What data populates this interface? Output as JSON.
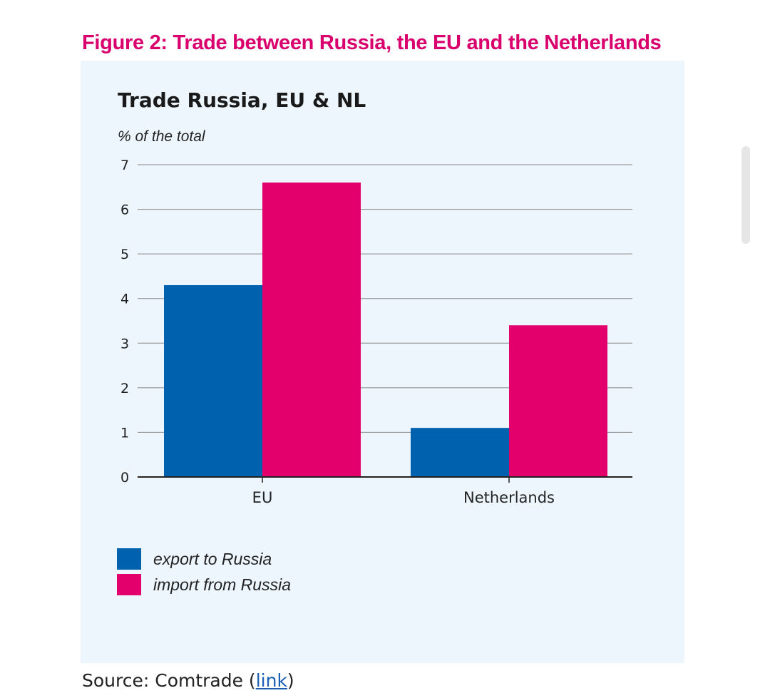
{
  "figure_title": "Figure 2: Trade between Russia, the EU and the Netherlands",
  "source": {
    "prefix": "Source: Comtrade (",
    "link": "link",
    "suffix": ")"
  },
  "chart_data": {
    "type": "bar",
    "title": "Trade Russia, EU & NL",
    "ylabel": "% of the total",
    "xlabel": "",
    "ylim": [
      0,
      7
    ],
    "yticks": [
      0,
      1,
      2,
      3,
      4,
      5,
      6,
      7
    ],
    "categories": [
      "EU",
      "Netherlands"
    ],
    "series": [
      {
        "name": "export to Russia",
        "color": "#0061ae",
        "values": [
          4.3,
          1.1
        ]
      },
      {
        "name": "import from Russia",
        "color": "#e3006c",
        "values": [
          6.6,
          3.4
        ]
      }
    ],
    "grid": true,
    "legend": "bottom-left"
  }
}
